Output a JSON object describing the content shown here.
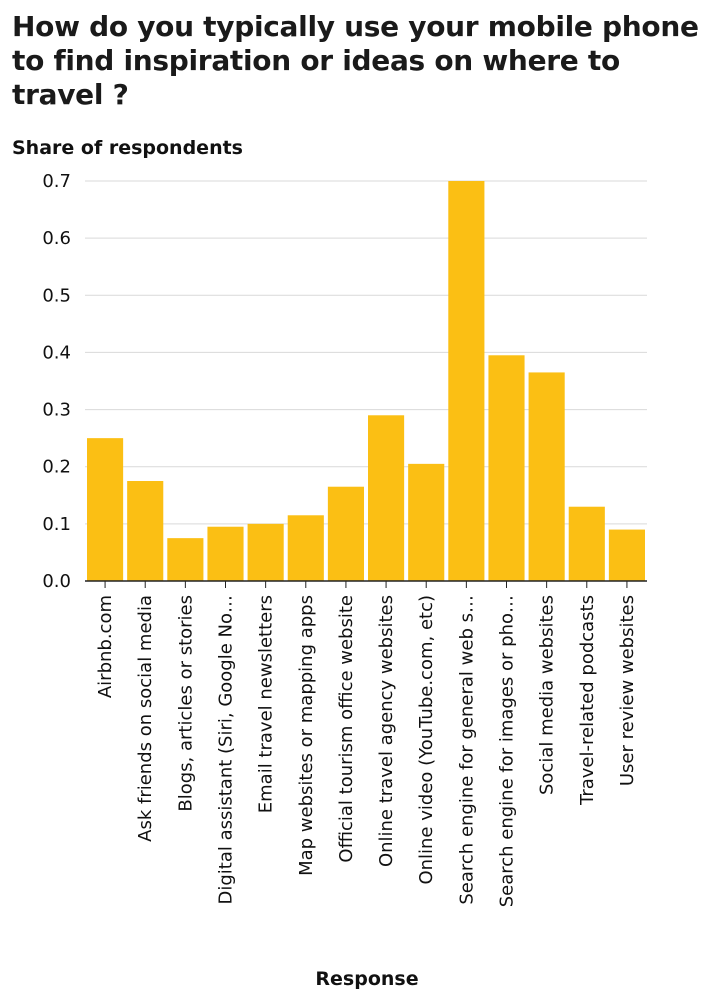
{
  "chart_data": {
    "type": "bar",
    "title": "How do you typically use your mobile phone\nto find inspiration or ideas on where to\ntravel ?",
    "ylabel": "Share of respondents",
    "xlabel": "Response",
    "ylim": [
      0,
      0.7
    ],
    "yticks": [
      "0.0",
      "0.1",
      "0.2",
      "0.3",
      "0.4",
      "0.5",
      "0.6",
      "0.7"
    ],
    "grid": true,
    "bar_color": "#fbbf14",
    "categories": [
      "Airbnb.com",
      "Ask friends on social media",
      "Blogs, articles or stories",
      "Digital assistant (Siri, Google No…",
      "Email travel newsletters",
      "Map websites or mapping apps",
      "Official tourism office website",
      "Online travel agency websites",
      "Online video (YouTube.com, etc)",
      "Search engine for general web s…",
      "Search engine for images or pho…",
      "Social media websites",
      "Travel-related podcasts",
      "User review websites"
    ],
    "values": [
      0.25,
      0.175,
      0.075,
      0.095,
      0.1,
      0.115,
      0.165,
      0.29,
      0.205,
      0.7,
      0.395,
      0.365,
      0.13,
      0.09
    ]
  }
}
